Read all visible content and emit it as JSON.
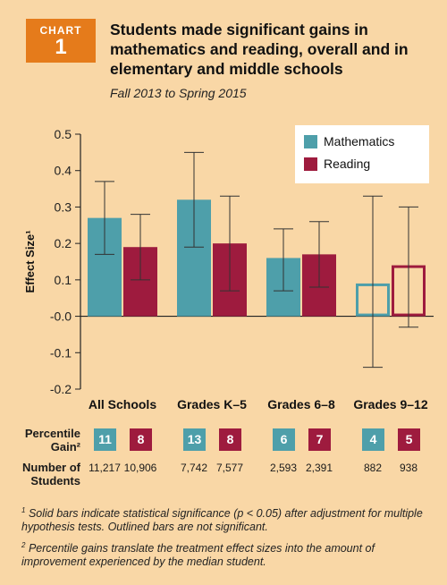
{
  "badge": {
    "word": "CHART",
    "number": "1"
  },
  "title": "Students made significant gains in mathematics and reading, overall and in elementary and middle schools",
  "subtitle": "Fall 2013 to Spring 2015",
  "colors": {
    "math": "#4E9FAA",
    "reading": "#9E1B3E",
    "background": "#F9D7A6",
    "badge": "#E57B1B"
  },
  "chart_data": {
    "type": "bar",
    "ylabel": "Effect Size¹",
    "ylim": [
      -0.2,
      0.5
    ],
    "yticks": [
      "0.5",
      "0.4",
      "0.3",
      "0.2",
      "0.1",
      "-0.0",
      "-0.1",
      "-0.2"
    ],
    "categories": [
      "All Schools",
      "Grades K–5",
      "Grades 6–8",
      "Grades 9–12"
    ],
    "legend_position": "top-right",
    "series": [
      {
        "name": "Mathematics",
        "values": [
          0.27,
          0.32,
          0.16,
          0.09
        ],
        "ci_low": [
          0.17,
          0.19,
          0.07,
          -0.14
        ],
        "ci_high": [
          0.37,
          0.45,
          0.24,
          0.33
        ],
        "significant": [
          true,
          true,
          true,
          false
        ]
      },
      {
        "name": "Reading",
        "values": [
          0.19,
          0.2,
          0.17,
          0.14
        ],
        "ci_low": [
          0.1,
          0.07,
          0.08,
          -0.03
        ],
        "ci_high": [
          0.28,
          0.33,
          0.26,
          0.3
        ],
        "significant": [
          true,
          true,
          true,
          false
        ]
      }
    ]
  },
  "percentile": {
    "label_line1": "Percentile",
    "label_line2": "Gain²",
    "values": [
      [
        "11",
        "8"
      ],
      [
        "13",
        "8"
      ],
      [
        "6",
        "7"
      ],
      [
        "4",
        "5"
      ]
    ]
  },
  "students": {
    "label_line1": "Number of",
    "label_line2": "Students",
    "values": [
      [
        "11,217",
        "10,906"
      ],
      [
        "7,742",
        "7,577"
      ],
      [
        "2,593",
        "2,391"
      ],
      [
        "882",
        "938"
      ]
    ]
  },
  "footnotes": [
    {
      "mark": "1",
      "text": "Solid bars indicate statistical significance (p < 0.05) after adjustment for multiple hypothesis tests. Outlined bars are not significant."
    },
    {
      "mark": "2",
      "text": "Percentile gains translate the treatment effect sizes into the amount of improvement experienced by the median student."
    }
  ]
}
